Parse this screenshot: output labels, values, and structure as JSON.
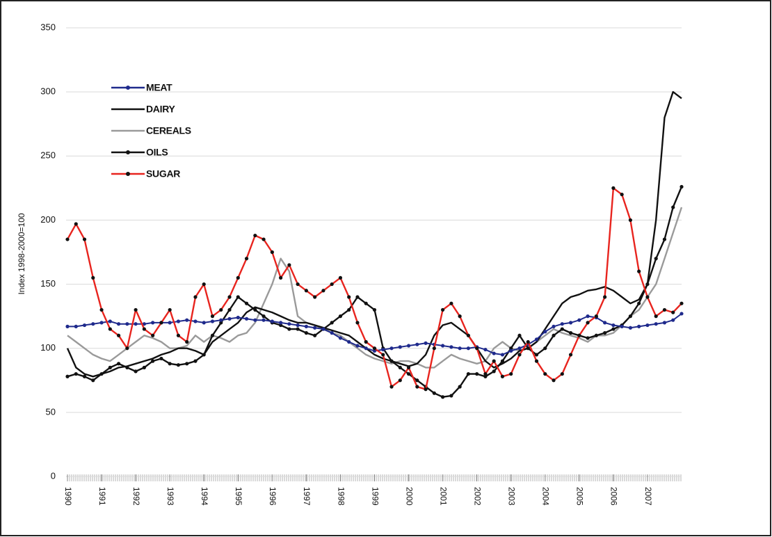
{
  "chart_data": {
    "type": "line",
    "y_label": "Index 1998-2000=100",
    "x": [
      1990,
      1990.25,
      1990.5,
      1990.75,
      1991,
      1991.25,
      1991.5,
      1991.75,
      1992,
      1992.25,
      1992.5,
      1992.75,
      1993,
      1993.25,
      1993.5,
      1993.75,
      1994,
      1994.25,
      1994.5,
      1994.75,
      1995,
      1995.25,
      1995.5,
      1995.75,
      1996,
      1996.25,
      1996.5,
      1996.75,
      1997,
      1997.25,
      1997.5,
      1997.75,
      1998,
      1998.25,
      1998.5,
      1998.75,
      1999,
      1999.25,
      1999.5,
      1999.75,
      2000,
      2000.25,
      2000.5,
      2000.75,
      2001,
      2001.25,
      2001.5,
      2001.75,
      2002,
      2002.25,
      2002.5,
      2002.75,
      2003,
      2003.25,
      2003.5,
      2003.75,
      2004,
      2004.25,
      2004.5,
      2004.75,
      2005,
      2005.25,
      2005.5,
      2005.75,
      2006,
      2006.25,
      2006.5,
      2006.75,
      2007,
      2007.25,
      2007.5,
      2007.75,
      2008
    ],
    "xlim": [
      1990,
      2008
    ],
    "xticks": [
      1990,
      1991,
      1992,
      1993,
      1994,
      1995,
      1996,
      1997,
      1998,
      1999,
      2000,
      2001,
      2002,
      2003,
      2004,
      2005,
      2006,
      2007
    ],
    "ylim": [
      0,
      350
    ],
    "yticks": [
      0,
      50,
      100,
      150,
      200,
      250,
      300,
      350
    ],
    "grid": true,
    "legend": "upper left",
    "series": [
      {
        "name": "MEAT",
        "color": "#1f2a8c",
        "marker": true,
        "values": [
          117,
          117,
          118,
          119,
          120,
          121,
          119,
          119,
          119,
          119,
          120,
          120,
          120,
          121,
          122,
          121,
          120,
          121,
          122,
          123,
          124,
          123,
          122,
          122,
          121,
          120,
          119,
          118,
          117,
          116,
          115,
          112,
          108,
          105,
          102,
          100,
          98,
          99,
          100,
          101,
          102,
          103,
          104,
          103,
          102,
          101,
          100,
          100,
          101,
          99,
          96,
          95,
          98,
          100,
          103,
          107,
          113,
          117,
          119,
          120,
          122,
          125,
          124,
          120,
          118,
          117,
          116,
          117,
          118,
          119,
          120,
          122,
          127
        ]
      },
      {
        "name": "DAIRY",
        "color": "#111111",
        "marker": false,
        "values": [
          100,
          85,
          80,
          78,
          80,
          82,
          85,
          86,
          88,
          90,
          92,
          95,
          97,
          100,
          100,
          98,
          95,
          105,
          110,
          115,
          120,
          128,
          132,
          130,
          128,
          125,
          122,
          120,
          120,
          118,
          116,
          114,
          112,
          110,
          105,
          100,
          95,
          92,
          90,
          88,
          86,
          88,
          95,
          110,
          118,
          120,
          115,
          110,
          100,
          90,
          85,
          88,
          92,
          98,
          100,
          105,
          115,
          125,
          135,
          140,
          142,
          145,
          146,
          148,
          145,
          140,
          135,
          138,
          150,
          200,
          280,
          300,
          295
        ]
      },
      {
        "name": "CEREALS",
        "color": "#9a9a9a",
        "marker": false,
        "values": [
          110,
          105,
          100,
          95,
          92,
          90,
          95,
          100,
          105,
          110,
          108,
          105,
          100,
          100,
          102,
          110,
          105,
          110,
          108,
          105,
          110,
          112,
          120,
          135,
          150,
          170,
          160,
          125,
          120,
          118,
          115,
          112,
          110,
          105,
          100,
          95,
          92,
          90,
          88,
          90,
          90,
          88,
          85,
          85,
          90,
          95,
          92,
          90,
          88,
          90,
          100,
          105,
          100,
          98,
          100,
          105,
          110,
          115,
          112,
          110,
          108,
          105,
          110,
          110,
          112,
          118,
          125,
          130,
          140,
          150,
          170,
          190,
          210
        ]
      },
      {
        "name": "OILS",
        "color": "#111111",
        "marker": true,
        "values": [
          78,
          80,
          78,
          75,
          80,
          85,
          88,
          85,
          82,
          85,
          90,
          92,
          88,
          87,
          88,
          90,
          95,
          110,
          120,
          130,
          140,
          135,
          130,
          125,
          120,
          118,
          115,
          115,
          112,
          110,
          115,
          120,
          125,
          130,
          140,
          135,
          130,
          100,
          90,
          85,
          80,
          75,
          70,
          65,
          62,
          63,
          70,
          80,
          80,
          78,
          82,
          90,
          100,
          110,
          100,
          95,
          100,
          110,
          115,
          112,
          110,
          108,
          110,
          112,
          115,
          118,
          125,
          135,
          150,
          170,
          185,
          210,
          226
        ]
      },
      {
        "name": "SUGAR",
        "color": "#e8241e",
        "marker": true,
        "values": [
          185,
          197,
          185,
          155,
          130,
          115,
          110,
          100,
          130,
          115,
          110,
          120,
          130,
          110,
          105,
          140,
          150,
          125,
          130,
          140,
          155,
          170,
          188,
          185,
          175,
          155,
          165,
          150,
          145,
          140,
          145,
          150,
          155,
          140,
          120,
          105,
          100,
          95,
          70,
          75,
          85,
          70,
          68,
          100,
          130,
          135,
          125,
          110,
          100,
          80,
          90,
          78,
          80,
          95,
          105,
          90,
          80,
          75,
          80,
          95,
          110,
          120,
          125,
          140,
          225,
          220,
          200,
          160,
          140,
          125,
          130,
          128,
          135
        ]
      }
    ]
  }
}
